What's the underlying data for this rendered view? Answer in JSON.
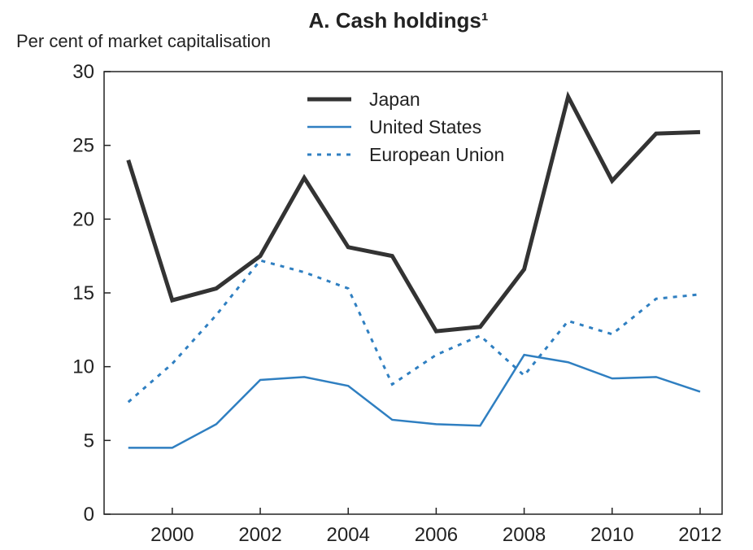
{
  "chart_data": {
    "type": "line",
    "title": "A. Cash holdings¹",
    "y_label": "Per cent of market capitalisation",
    "x": [
      1999,
      2000,
      2001,
      2002,
      2003,
      2004,
      2005,
      2006,
      2007,
      2008,
      2009,
      2010,
      2011,
      2012
    ],
    "xlim": [
      1998.45,
      2012.5
    ],
    "xticks": [
      2000,
      2002,
      2004,
      2006,
      2008,
      2010,
      2012
    ],
    "ylim": [
      0,
      30
    ],
    "yticks": [
      0,
      5,
      10,
      15,
      20,
      25,
      30
    ],
    "legend": "top",
    "series": [
      {
        "name": "Japan",
        "color": "#333333",
        "style": "solid",
        "width": 5,
        "values": [
          24,
          14.5,
          15.3,
          17.5,
          22.8,
          18.1,
          17.5,
          12.4,
          12.7,
          16.6,
          28.3,
          22.6,
          25.8,
          25.9
        ]
      },
      {
        "name": "United States",
        "color": "#2f7fc1",
        "style": "solid",
        "width": 2.5,
        "values": [
          4.5,
          4.5,
          6.1,
          9.1,
          9.3,
          8.7,
          6.4,
          6.1,
          6.0,
          10.8,
          10.3,
          9.2,
          9.3,
          8.3
        ]
      },
      {
        "name": "European Union",
        "color": "#2f7fc1",
        "style": "dotted",
        "width": 3,
        "values": [
          7.6,
          10.2,
          13.5,
          17.2,
          16.4,
          15.3,
          8.8,
          10.8,
          12.1,
          9.4,
          13.1,
          12.2,
          14.6,
          14.9
        ]
      }
    ]
  }
}
